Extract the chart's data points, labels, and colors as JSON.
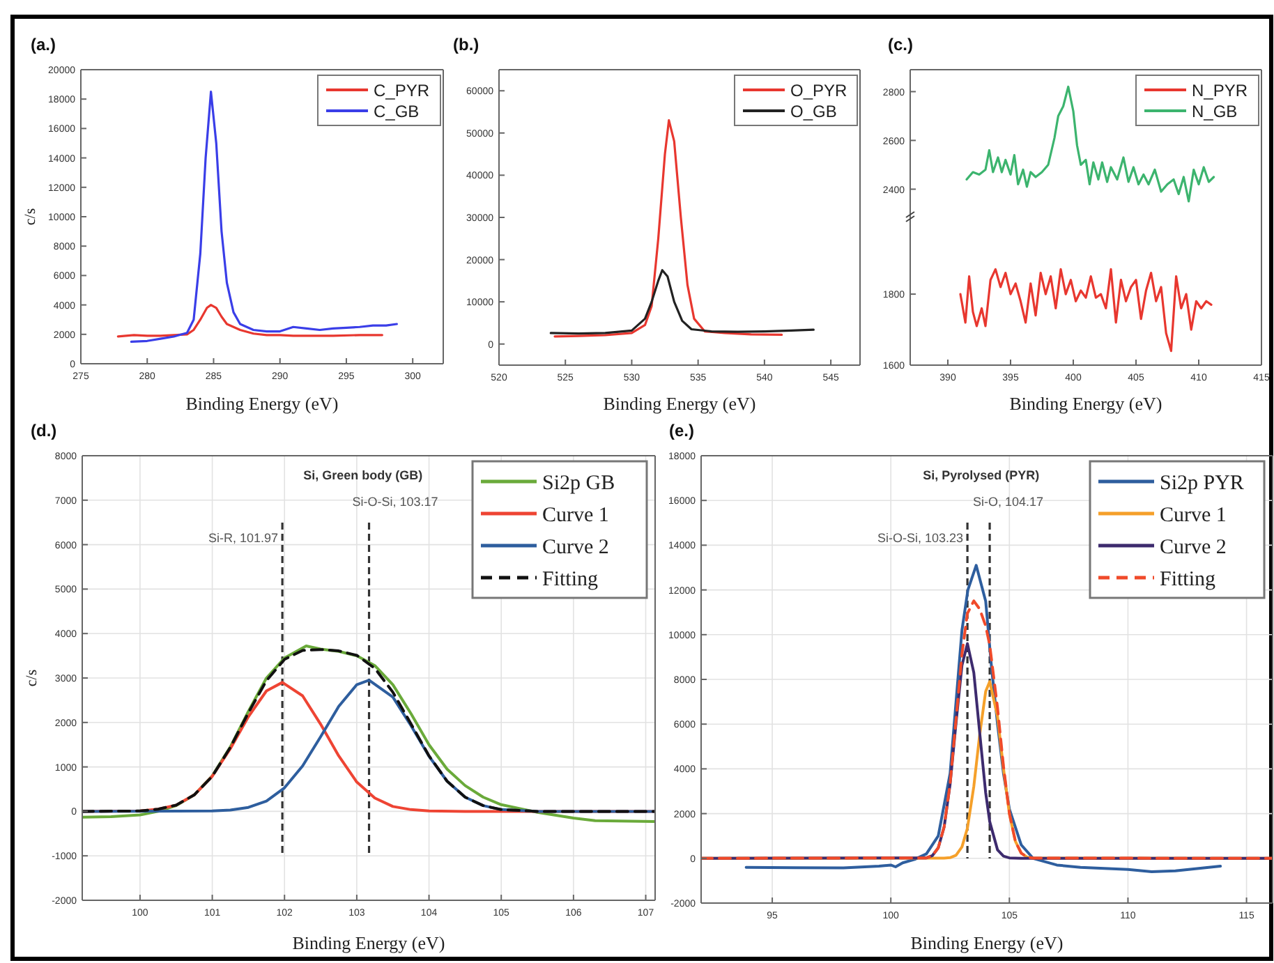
{
  "chart_data": [
    {
      "type": "line",
      "title": "(a.)",
      "xlabel": "Binding Energy (eV)",
      "ylabel": "c/s",
      "xlim": [
        275,
        302.3
      ],
      "xticks": [
        275,
        280,
        285,
        290,
        295,
        300
      ],
      "ylim": [
        0,
        20000
      ],
      "yticks": [
        0,
        2000,
        4000,
        6000,
        8000,
        10000,
        12000,
        14000,
        16000,
        18000,
        20000
      ],
      "grid": false,
      "legend": "top right",
      "series": [
        {
          "name": "C_PYR",
          "color": "#e8372f",
          "x": [
            277.8,
            279,
            280,
            281,
            282,
            283,
            283.5,
            284,
            284.5,
            284.8,
            285.2,
            285.6,
            286,
            287,
            288,
            289,
            290,
            291,
            292,
            294,
            296,
            297.7
          ],
          "values": [
            1850,
            1950,
            1900,
            1900,
            1950,
            2000,
            2300,
            3000,
            3800,
            4000,
            3800,
            3200,
            2700,
            2300,
            2050,
            1950,
            1950,
            1900,
            1900,
            1900,
            1950,
            1950
          ]
        },
        {
          "name": "C_GB",
          "color": "#3a3ee8",
          "x": [
            278.8,
            280,
            281,
            282,
            283,
            283.5,
            284,
            284.4,
            284.8,
            285.2,
            285.6,
            286,
            286.5,
            287,
            288,
            289,
            290,
            291,
            292,
            293,
            294,
            295,
            296,
            297,
            298,
            298.8
          ],
          "values": [
            1500,
            1550,
            1700,
            1850,
            2100,
            3000,
            7500,
            14000,
            18500,
            15000,
            9000,
            5500,
            3500,
            2700,
            2300,
            2200,
            2200,
            2500,
            2400,
            2300,
            2400,
            2450,
            2500,
            2600,
            2600,
            2700
          ]
        }
      ]
    },
    {
      "type": "line",
      "title": "(b.)",
      "xlabel": "Binding Energy (eV)",
      "xlim": [
        520,
        547.2
      ],
      "xticks": [
        520,
        525,
        530,
        535,
        540,
        545
      ],
      "ylim": [
        -5000,
        65000
      ],
      "yticks": [
        0,
        10000,
        20000,
        30000,
        40000,
        50000,
        60000
      ],
      "grid": false,
      "legend": "top right",
      "series": [
        {
          "name": "O_PYR",
          "color": "#e8372f",
          "x": [
            524.2,
            526,
            528,
            530,
            531,
            531.5,
            532,
            532.5,
            532.8,
            533.2,
            533.7,
            534.2,
            534.7,
            535.5,
            537,
            539,
            541.3
          ],
          "values": [
            1800,
            1900,
            2100,
            2600,
            4500,
            9000,
            25000,
            45000,
            53000,
            48000,
            30000,
            14000,
            6000,
            3000,
            2600,
            2300,
            2200
          ]
        },
        {
          "name": "O_GB",
          "color": "#222222",
          "x": [
            523.9,
            526,
            528,
            530,
            531,
            531.5,
            532,
            532.3,
            532.7,
            533.2,
            533.8,
            534.5,
            536,
            538,
            540,
            542,
            543.7
          ],
          "values": [
            2600,
            2500,
            2600,
            3200,
            6000,
            10000,
            15000,
            17500,
            16000,
            10000,
            5500,
            3500,
            3000,
            2900,
            3000,
            3200,
            3400
          ]
        }
      ]
    },
    {
      "type": "line",
      "title": "(c.)",
      "xlim": [
        387,
        415
      ],
      "ylim": [
        2290,
        2890
      ],
      "yticks": [
        2400,
        2600,
        2800
      ],
      "grid": false,
      "legend": "top right",
      "tick_labels": "y",
      "series": [
        {
          "name": "N_GB",
          "color": "#3cb46e",
          "x": [
            391.5,
            392,
            392.5,
            393,
            393.3,
            393.6,
            394,
            394.3,
            394.6,
            395,
            395.3,
            395.6,
            396,
            396.3,
            396.6,
            397,
            397.5,
            398,
            398.5,
            398.8,
            399.2,
            399.6,
            400,
            400.3,
            400.6,
            401,
            401.3,
            401.6,
            402,
            402.3,
            402.7,
            403,
            403.5,
            404,
            404.4,
            404.8,
            405.2,
            405.6,
            406,
            406.5,
            407,
            407.5,
            408,
            408.4,
            408.8,
            409.2,
            409.6,
            410,
            410.4,
            410.8,
            411.2
          ],
          "values": [
            2440,
            2470,
            2460,
            2480,
            2560,
            2470,
            2530,
            2470,
            2520,
            2460,
            2540,
            2420,
            2480,
            2410,
            2470,
            2450,
            2470,
            2500,
            2610,
            2700,
            2740,
            2820,
            2720,
            2580,
            2500,
            2520,
            2420,
            2510,
            2440,
            2510,
            2430,
            2490,
            2440,
            2530,
            2430,
            2490,
            2420,
            2460,
            2420,
            2480,
            2390,
            2420,
            2440,
            2380,
            2450,
            2350,
            2480,
            2420,
            2490,
            2430,
            2450
          ]
        }
      ]
    },
    {
      "type": "line",
      "xlabel": "Binding Energy (eV)",
      "xlim": [
        387,
        415
      ],
      "xticks": [
        390,
        395,
        400,
        405,
        410,
        415
      ],
      "ylim": [
        1600,
        2020
      ],
      "yticks": [
        1600,
        1800
      ],
      "grid": false,
      "legend": "top right",
      "series": [
        {
          "name": "N_PYR",
          "color": "#e8372f",
          "x": [
            391,
            391.4,
            391.7,
            392,
            392.3,
            392.7,
            393,
            393.4,
            393.8,
            394.2,
            394.6,
            395,
            395.4,
            395.8,
            396.2,
            396.6,
            397,
            397.4,
            397.8,
            398.2,
            398.6,
            399,
            399.4,
            399.8,
            400.2,
            400.6,
            401,
            401.4,
            401.8,
            402.2,
            402.6,
            403,
            403.4,
            403.8,
            404.2,
            404.6,
            405,
            405.4,
            405.8,
            406.2,
            406.6,
            407,
            407.4,
            407.8,
            408.2,
            408.6,
            409,
            409.4,
            409.8,
            410.2,
            410.6,
            411
          ],
          "values": [
            1800,
            1720,
            1850,
            1750,
            1710,
            1760,
            1710,
            1840,
            1870,
            1820,
            1860,
            1800,
            1830,
            1780,
            1720,
            1830,
            1740,
            1860,
            1800,
            1850,
            1760,
            1870,
            1800,
            1840,
            1780,
            1810,
            1790,
            1850,
            1790,
            1800,
            1760,
            1870,
            1720,
            1840,
            1780,
            1820,
            1840,
            1730,
            1810,
            1860,
            1780,
            1820,
            1690,
            1640,
            1850,
            1760,
            1800,
            1700,
            1780,
            1760,
            1780,
            1770
          ]
        }
      ]
    },
    {
      "type": "line",
      "title": "(d.)",
      "subtitle": "Si, Green body (GB)",
      "xlabel": "Binding Energy (eV)",
      "ylabel": "c/s",
      "xlim": [
        99.2,
        107.13
      ],
      "xticks": [
        100,
        101,
        102,
        103,
        104,
        105,
        106,
        107
      ],
      "ylim": [
        -2000,
        8000
      ],
      "yticks": [
        -2000,
        -1000,
        0,
        1000,
        2000,
        3000,
        4000,
        5000,
        6000,
        7000,
        8000
      ],
      "grid": true,
      "legend": "top right",
      "ref_lines": [
        {
          "axis": "x",
          "value": 101.97,
          "label": "Si-R, 101.97",
          "color": "#333333",
          "line_style": "dashed"
        },
        {
          "axis": "x",
          "value": 103.17,
          "label": "Si-O-Si, 103.17",
          "color": "#333333",
          "line_style": "dashed"
        }
      ],
      "series": [
        {
          "name": "Si2p GB",
          "color": "#6aaa3a",
          "x": [
            99.2,
            99.6,
            100,
            100.25,
            100.5,
            100.75,
            101,
            101.25,
            101.5,
            101.75,
            102,
            102.3,
            102.5,
            102.75,
            103,
            103.25,
            103.5,
            103.75,
            104,
            104.25,
            104.5,
            104.75,
            105,
            105.5,
            106,
            106.3,
            107.13
          ],
          "values": [
            -130,
            -120,
            -80,
            0,
            130,
            370,
            800,
            1450,
            2250,
            3000,
            3450,
            3720,
            3650,
            3600,
            3500,
            3280,
            2850,
            2200,
            1500,
            950,
            580,
            320,
            150,
            -20,
            -150,
            -210,
            -230
          ]
        },
        {
          "name": "Curve 1",
          "color": "#ee4433",
          "x": [
            99.2,
            100,
            100.25,
            100.5,
            100.75,
            101,
            101.25,
            101.5,
            101.75,
            101.97,
            102.25,
            102.5,
            102.75,
            103,
            103.25,
            103.5,
            103.75,
            104,
            104.5,
            107.13
          ],
          "values": [
            0,
            10,
            50,
            140,
            370,
            790,
            1410,
            2130,
            2710,
            2900,
            2600,
            1960,
            1250,
            660,
            300,
            110,
            40,
            10,
            0,
            0
          ]
        },
        {
          "name": "Curve 2",
          "color": "#2e5e9e",
          "x": [
            99.2,
            101,
            101.25,
            101.5,
            101.75,
            102,
            102.25,
            102.5,
            102.75,
            103,
            103.17,
            103.5,
            103.75,
            104,
            104.25,
            104.5,
            104.75,
            105,
            105.5,
            107.13
          ],
          "values": [
            0,
            10,
            30,
            90,
            230,
            530,
            1020,
            1680,
            2360,
            2850,
            2950,
            2570,
            1930,
            1240,
            680,
            320,
            130,
            40,
            0,
            0
          ]
        },
        {
          "name": "Fitting",
          "color": "#111111",
          "line_style": "dashed",
          "x": [
            99.2,
            100,
            100.25,
            100.5,
            100.75,
            101,
            101.25,
            101.5,
            101.75,
            102,
            102.25,
            102.5,
            102.75,
            103,
            103.25,
            103.5,
            103.75,
            104,
            104.25,
            104.5,
            104.75,
            105,
            105.5,
            107.13
          ],
          "values": [
            0,
            10,
            50,
            140,
            370,
            790,
            1440,
            2220,
            2940,
            3420,
            3620,
            3640,
            3610,
            3510,
            3220,
            2680,
            1970,
            1250,
            680,
            320,
            130,
            40,
            0,
            0
          ]
        }
      ]
    },
    {
      "type": "line",
      "title": "(e.)",
      "subtitle": "Si, Pyrolysed (PYR)",
      "xlabel": "Binding Energy (eV)",
      "xlim": [
        92,
        116.1
      ],
      "xticks": [
        95,
        100,
        105,
        110,
        115
      ],
      "ylim": [
        -2000,
        18000
      ],
      "yticks": [
        -2000,
        0,
        2000,
        4000,
        6000,
        8000,
        10000,
        12000,
        14000,
        16000,
        18000
      ],
      "grid": true,
      "legend": "top right",
      "ref_lines": [
        {
          "axis": "x",
          "value": 103.23,
          "label": "Si-O-Si, 103.23",
          "color": "#333333",
          "line_style": "dashed"
        },
        {
          "axis": "x",
          "value": 104.17,
          "label": "Si-O, 104.17",
          "color": "#333333",
          "line_style": "dashed"
        }
      ],
      "series": [
        {
          "name": "Si2p PYR",
          "color": "#2e5e9e",
          "x": [
            93.9,
            96,
            98,
            99.5,
            100,
            100.2,
            100.5,
            101,
            101.5,
            102,
            102.5,
            102.75,
            103,
            103.25,
            103.6,
            104,
            104.25,
            104.5,
            104.75,
            105,
            105.5,
            106,
            106.5,
            107,
            108,
            110,
            111,
            112,
            113.9
          ],
          "values": [
            -400,
            -420,
            -430,
            -350,
            -300,
            -380,
            -200,
            -50,
            200,
            1000,
            3800,
            7000,
            10200,
            12000,
            13100,
            11500,
            8500,
            6000,
            3800,
            2200,
            600,
            0,
            -150,
            -300,
            -400,
            -500,
            -600,
            -560,
            -350
          ]
        },
        {
          "name": "Curve 1",
          "color": "#f5a02a",
          "x": [
            92,
            102.25,
            102.5,
            102.75,
            103,
            103.23,
            103.5,
            103.75,
            104,
            104.17,
            104.5,
            104.75,
            105,
            105.25,
            105.5,
            105.75,
            106,
            116.1
          ],
          "values": [
            0,
            10,
            30,
            140,
            510,
            1350,
            3220,
            5550,
            7460,
            7900,
            6350,
            4030,
            1990,
            770,
            230,
            50,
            10,
            0
          ]
        },
        {
          "name": "Curve 2",
          "color": "#3d2b6e",
          "x": [
            92,
            101.5,
            101.75,
            102,
            102.25,
            102.5,
            102.75,
            103,
            103.23,
            103.5,
            103.75,
            104,
            104.17,
            104.5,
            104.75,
            105,
            105.5,
            116.1
          ],
          "values": [
            0,
            20,
            120,
            470,
            1410,
            3310,
            6060,
            8630,
            9600,
            8300,
            5590,
            2930,
            1640,
            380,
            100,
            20,
            0,
            0
          ]
        },
        {
          "name": "Fitting",
          "color": "#f04a2a",
          "line_style": "dashed",
          "x": [
            92,
            101.5,
            101.75,
            102,
            102.25,
            102.5,
            102.75,
            103,
            103.23,
            103.5,
            103.75,
            104,
            104.17,
            104.5,
            104.75,
            105,
            105.25,
            105.5,
            105.75,
            106,
            116.1
          ],
          "values": [
            0,
            20,
            120,
            470,
            1410,
            3340,
            6200,
            9140,
            10950,
            11510,
            11140,
            10390,
            9540,
            6730,
            4130,
            2010,
            770,
            230,
            50,
            10,
            0
          ]
        }
      ]
    }
  ]
}
